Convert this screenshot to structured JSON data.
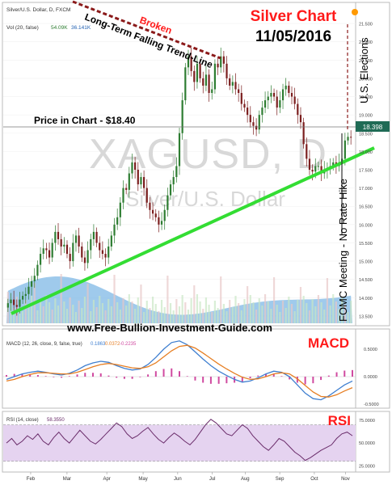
{
  "header": {
    "symbol_line": "Silver/U.S. Dollar, D, FXCM",
    "vol_line": "Vol (20, false)",
    "vol_values": [
      "54.09K",
      "36.141K"
    ]
  },
  "title": {
    "line1": "Silver Chart",
    "line2": "11/05/2016"
  },
  "watermark": {
    "symbol": "XAGUSD, D",
    "name": "Silver/U.S. Dollar"
  },
  "annotations": {
    "broken": "Broken",
    "trendline": "Long-Term Falling Trend-Line",
    "price": "Price in Chart - $18.40",
    "elections": "U.S. Elections",
    "fomc": "FOMC Meeting - No Rate Hike",
    "website": "www.Free-Bullion-Investment-Guide.com"
  },
  "colors": {
    "up_candle": "#2e7d32",
    "down_candle": "#7b1e1e",
    "volume": "#7fb8e6",
    "support_line": "#33dd33",
    "trend_line": "#8b1a1a",
    "title_red": "#ff1a1a",
    "macd_line": "#3f7fd0",
    "signal_line": "#e67e22",
    "hist": "#d04aa0",
    "rsi_line": "#6a2c6a",
    "rsi_band": "#e5d3f0",
    "price_badge": "#1f6b55"
  },
  "indicators": {
    "macd_label": "MACD",
    "macd_header": "MACD (12, 26, close, 9, false, true)",
    "macd_values": [
      "0.1863",
      "0.0372",
      "-0.2235"
    ],
    "rsi_label": "RSI",
    "rsi_header": "RSI (14, close)",
    "rsi_value": "58.3550"
  },
  "price_badge": "18.398",
  "chart_data": [
    {
      "type": "candlestick",
      "title": "Silver Chart",
      "subtitle": "11/05/2016",
      "x_ticks": [
        "Feb",
        "Mar",
        "Apr",
        "May",
        "Jun",
        "Jul",
        "Aug",
        "Sep",
        "Oct",
        "Nov"
      ],
      "y_ticks": [
        "13.500",
        "14.000",
        "14.500",
        "15.000",
        "15.500",
        "16.000",
        "16.500",
        "17.000",
        "17.500",
        "18.000",
        "18.500",
        "19.000",
        "19.500",
        "20.000",
        "20.500",
        "21.000",
        "21.500"
      ],
      "ylim": [
        13.3,
        21.7
      ],
      "last_price": 18.398,
      "series": [
        {
          "name": "Silver/U.S. Dollar",
          "close": [
            13.85,
            13.95,
            13.8,
            13.75,
            13.95,
            14.05,
            14.1,
            14.3,
            14.45,
            14.6,
            14.9,
            15.2,
            15.35,
            15.3,
            15.1,
            15.5,
            15.8,
            15.6,
            15.4,
            15.45,
            15.2,
            15.0,
            15.5,
            15.7,
            15.4,
            15.1,
            14.95,
            15.3,
            15.6,
            15.8,
            15.5,
            15.3,
            15.2,
            15.1,
            15.4,
            15.7,
            16.0,
            16.2,
            16.6,
            17.0,
            16.95,
            17.4,
            17.7,
            17.5,
            17.1,
            17.3,
            17.0,
            16.6,
            16.4,
            16.3,
            16.2,
            16.0,
            16.1,
            16.4,
            16.8,
            17.1,
            17.3,
            17.6,
            18.5,
            19.4,
            20.3,
            20.6,
            20.2,
            19.9,
            20.4,
            20.0,
            19.8,
            20.1,
            19.6,
            19.7,
            20.4,
            20.3,
            20.6,
            20.4,
            20.0,
            19.8,
            19.9,
            19.7,
            19.6,
            19.3,
            19.2,
            19.0,
            18.8,
            18.7,
            18.6,
            19.0,
            19.2,
            19.4,
            19.5,
            19.6,
            19.5,
            19.2,
            19.4,
            19.7,
            19.8,
            19.6,
            19.5,
            19.3,
            19.0,
            18.8,
            18.2,
            17.8,
            17.5,
            17.45,
            17.6,
            17.6,
            17.4,
            17.5,
            17.55,
            17.6,
            17.7,
            17.6,
            17.7,
            17.8,
            18.3,
            18.4,
            18.398
          ]
        }
      ]
    },
    {
      "type": "line",
      "title": "MACD",
      "series": [
        {
          "name": "MACD",
          "values": [
            -0.05,
            0.0,
            0.05,
            0.08,
            0.1,
            0.08,
            0.05,
            0.03,
            0.06,
            0.12,
            0.2,
            0.25,
            0.28,
            0.26,
            0.2,
            0.15,
            0.12,
            0.14,
            0.22,
            0.35,
            0.5,
            0.62,
            0.65,
            0.58,
            0.45,
            0.32,
            0.2,
            0.1,
            0.02,
            -0.05,
            -0.1,
            -0.08,
            -0.02,
            0.05,
            0.1,
            0.08,
            0.0,
            -0.15,
            -0.3,
            -0.4,
            -0.42,
            -0.35,
            -0.25,
            -0.15,
            -0.08
          ]
        },
        {
          "name": "Signal",
          "values": [
            -0.08,
            -0.05,
            0.0,
            0.04,
            0.07,
            0.07,
            0.06,
            0.05,
            0.05,
            0.08,
            0.13,
            0.18,
            0.22,
            0.24,
            0.22,
            0.19,
            0.16,
            0.15,
            0.18,
            0.25,
            0.36,
            0.47,
            0.55,
            0.57,
            0.52,
            0.43,
            0.33,
            0.23,
            0.14,
            0.06,
            -0.01,
            -0.05,
            -0.04,
            0.0,
            0.05,
            0.07,
            0.05,
            -0.04,
            -0.16,
            -0.28,
            -0.36,
            -0.37,
            -0.33,
            -0.26,
            -0.2
          ]
        }
      ],
      "ylim": [
        -0.5,
        0.75
      ]
    },
    {
      "type": "line",
      "title": "RSI",
      "y_ticks": [
        "25.0000",
        "50.0000",
        "75.0000"
      ],
      "ylim": [
        20,
        82
      ],
      "series": [
        {
          "name": "RSI",
          "values": [
            50,
            55,
            48,
            52,
            58,
            54,
            60,
            52,
            48,
            56,
            62,
            55,
            50,
            57,
            64,
            58,
            52,
            49,
            54,
            60,
            66,
            72,
            68,
            60,
            55,
            58,
            63,
            67,
            60,
            54,
            50,
            56,
            61,
            57,
            52,
            48,
            54,
            62,
            70,
            76,
            72,
            66,
            60,
            58,
            64,
            70,
            66,
            58,
            52,
            46,
            42,
            48,
            55,
            52,
            46,
            40,
            36,
            31,
            34,
            38,
            42,
            45,
            48,
            55,
            60,
            62,
            58
          ]
        }
      ]
    }
  ]
}
